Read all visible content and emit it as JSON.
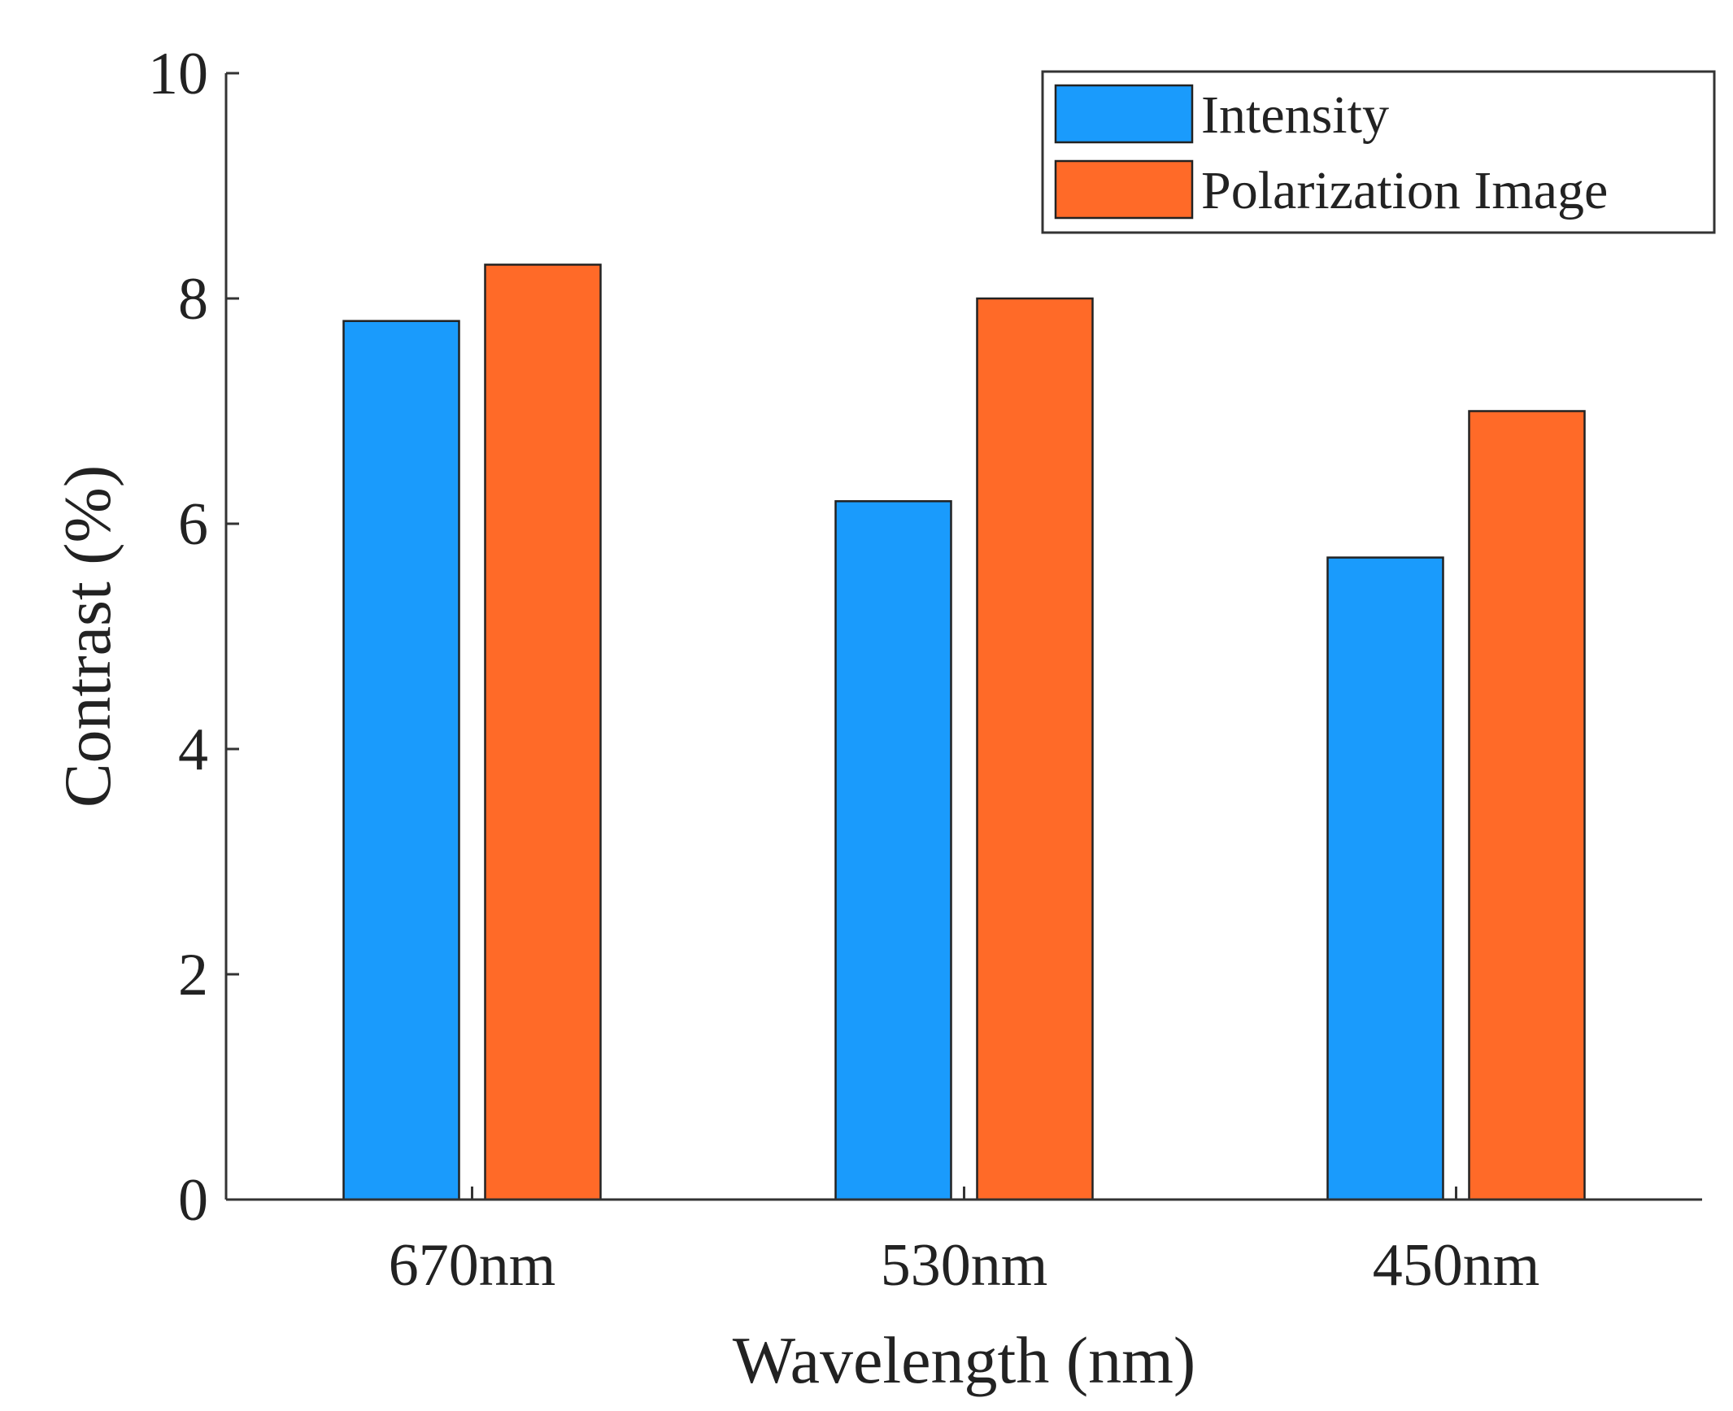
{
  "chart_data": {
    "type": "bar",
    "categories": [
      "670nm",
      "530nm",
      "450nm"
    ],
    "series": [
      {
        "name": "Intensity",
        "color": "#1a9bfc",
        "values": [
          7.8,
          6.2,
          5.7
        ]
      },
      {
        "name": "Polarization Image",
        "color": "#ff6a28",
        "values": [
          8.3,
          8.0,
          7.0
        ]
      }
    ],
    "xlabel": "Wavelength (nm)",
    "ylabel": "Contrast (%)",
    "ylim": [
      0,
      10
    ],
    "yticks": [
      0,
      2,
      4,
      6,
      8,
      10
    ],
    "grid": false,
    "legend_position": "top-right"
  }
}
